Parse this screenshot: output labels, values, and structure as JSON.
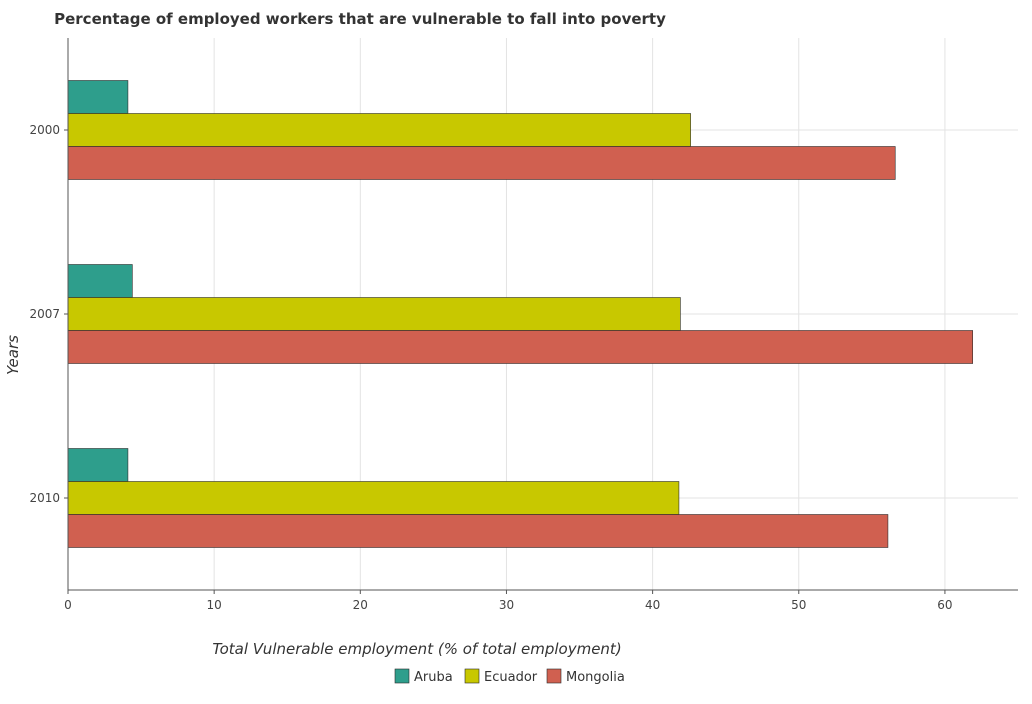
{
  "chart_data": {
    "type": "bar",
    "orientation": "horizontal",
    "title": "Percentage of employed workers that are vulnerable to fall into poverty",
    "xlabel": "Total Vulnerable employment (% of total employment)",
    "ylabel": "Years",
    "categories": [
      "2000",
      "2007",
      "2010"
    ],
    "xlim": [
      0,
      65
    ],
    "xticks": [
      0,
      10,
      20,
      30,
      40,
      50,
      60
    ],
    "grid": true,
    "legend_position": "bottom-center",
    "series": [
      {
        "name": "Aruba",
        "color": "#2e9e8c",
        "values": [
          4.1,
          4.4,
          4.1
        ]
      },
      {
        "name": "Ecuador",
        "color": "#c8c800",
        "values": [
          42.6,
          41.9,
          41.8
        ]
      },
      {
        "name": "Mongolia",
        "color": "#d06050",
        "values": [
          56.6,
          61.9,
          56.1
        ]
      }
    ]
  }
}
